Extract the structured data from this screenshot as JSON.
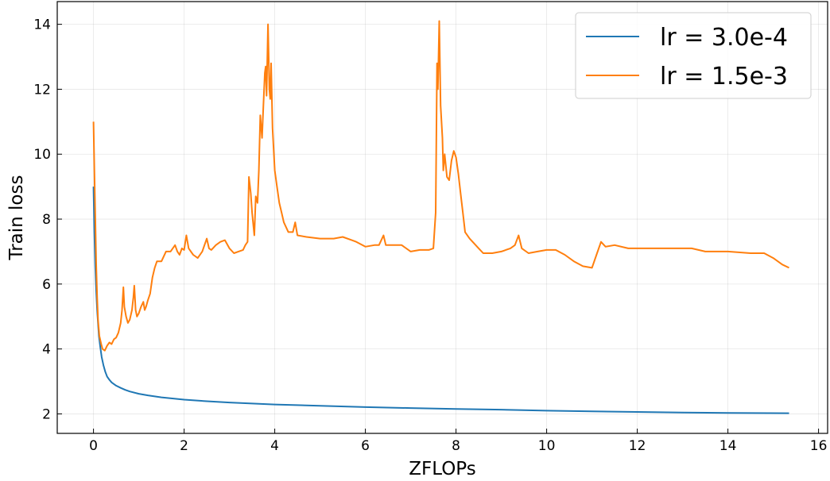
{
  "chart_data": {
    "type": "line",
    "title": "",
    "xlabel": "ZFLOPs",
    "ylabel": "Train loss",
    "xlim": [
      -0.8,
      16.2
    ],
    "ylim": [
      1.4,
      14.7
    ],
    "xticks": [
      0,
      2,
      4,
      6,
      8,
      10,
      12,
      14,
      16
    ],
    "yticks": [
      2,
      4,
      6,
      8,
      10,
      12,
      14
    ],
    "grid": true,
    "legend_position": "top-right",
    "series": [
      {
        "name": "lr = 3.0e-4",
        "color": "#1f77b4",
        "points": [
          [
            0.0,
            9.0
          ],
          [
            0.02,
            7.6
          ],
          [
            0.04,
            6.5
          ],
          [
            0.06,
            5.8
          ],
          [
            0.08,
            5.2
          ],
          [
            0.1,
            4.8
          ],
          [
            0.12,
            4.4
          ],
          [
            0.15,
            4.05
          ],
          [
            0.18,
            3.75
          ],
          [
            0.22,
            3.5
          ],
          [
            0.26,
            3.3
          ],
          [
            0.3,
            3.15
          ],
          [
            0.35,
            3.05
          ],
          [
            0.4,
            2.97
          ],
          [
            0.5,
            2.87
          ],
          [
            0.6,
            2.8
          ],
          [
            0.7,
            2.74
          ],
          [
            0.8,
            2.69
          ],
          [
            1.0,
            2.62
          ],
          [
            1.2,
            2.57
          ],
          [
            1.5,
            2.51
          ],
          [
            2.0,
            2.44
          ],
          [
            2.5,
            2.39
          ],
          [
            3.0,
            2.35
          ],
          [
            3.5,
            2.32
          ],
          [
            4.0,
            2.29
          ],
          [
            5.0,
            2.25
          ],
          [
            6.0,
            2.21
          ],
          [
            7.0,
            2.18
          ],
          [
            8.0,
            2.15
          ],
          [
            9.0,
            2.13
          ],
          [
            10.0,
            2.1
          ],
          [
            11.0,
            2.08
          ],
          [
            12.0,
            2.06
          ],
          [
            13.0,
            2.04
          ],
          [
            14.0,
            2.03
          ],
          [
            15.35,
            2.02
          ]
        ]
      },
      {
        "name": "lr = 1.5e-3",
        "color": "#ff7f0e",
        "points": [
          [
            0.0,
            11.0
          ],
          [
            0.02,
            9.5
          ],
          [
            0.04,
            8.0
          ],
          [
            0.06,
            6.6
          ],
          [
            0.08,
            5.6
          ],
          [
            0.1,
            4.9
          ],
          [
            0.13,
            4.4
          ],
          [
            0.17,
            4.15
          ],
          [
            0.2,
            4.0
          ],
          [
            0.25,
            3.95
          ],
          [
            0.3,
            4.1
          ],
          [
            0.35,
            4.2
          ],
          [
            0.4,
            4.15
          ],
          [
            0.45,
            4.3
          ],
          [
            0.5,
            4.35
          ],
          [
            0.55,
            4.5
          ],
          [
            0.6,
            4.8
          ],
          [
            0.63,
            5.2
          ],
          [
            0.66,
            5.9
          ],
          [
            0.68,
            5.3
          ],
          [
            0.72,
            5.0
          ],
          [
            0.76,
            4.8
          ],
          [
            0.8,
            4.9
          ],
          [
            0.85,
            5.2
          ],
          [
            0.88,
            5.6
          ],
          [
            0.9,
            5.95
          ],
          [
            0.93,
            5.2
          ],
          [
            0.96,
            5.0
          ],
          [
            1.0,
            5.1
          ],
          [
            1.05,
            5.3
          ],
          [
            1.1,
            5.45
          ],
          [
            1.13,
            5.2
          ],
          [
            1.16,
            5.3
          ],
          [
            1.2,
            5.5
          ],
          [
            1.25,
            5.7
          ],
          [
            1.3,
            6.2
          ],
          [
            1.35,
            6.5
          ],
          [
            1.4,
            6.7
          ],
          [
            1.5,
            6.7
          ],
          [
            1.6,
            7.0
          ],
          [
            1.7,
            7.0
          ],
          [
            1.8,
            7.2
          ],
          [
            1.85,
            7.0
          ],
          [
            1.9,
            6.9
          ],
          [
            1.95,
            7.1
          ],
          [
            2.0,
            7.05
          ],
          [
            2.05,
            7.5
          ],
          [
            2.1,
            7.1
          ],
          [
            2.2,
            6.9
          ],
          [
            2.3,
            6.8
          ],
          [
            2.4,
            7.0
          ],
          [
            2.5,
            7.4
          ],
          [
            2.55,
            7.1
          ],
          [
            2.6,
            7.05
          ],
          [
            2.7,
            7.2
          ],
          [
            2.8,
            7.3
          ],
          [
            2.9,
            7.35
          ],
          [
            3.0,
            7.1
          ],
          [
            3.1,
            6.95
          ],
          [
            3.2,
            7.0
          ],
          [
            3.3,
            7.05
          ],
          [
            3.35,
            7.2
          ],
          [
            3.4,
            7.3
          ],
          [
            3.43,
            9.3
          ],
          [
            3.47,
            8.8
          ],
          [
            3.5,
            8.2
          ],
          [
            3.55,
            7.5
          ],
          [
            3.58,
            8.7
          ],
          [
            3.62,
            8.5
          ],
          [
            3.65,
            9.5
          ],
          [
            3.68,
            11.2
          ],
          [
            3.72,
            10.5
          ],
          [
            3.75,
            11.5
          ],
          [
            3.78,
            12.5
          ],
          [
            3.8,
            12.7
          ],
          [
            3.82,
            11.8
          ],
          [
            3.85,
            14.0
          ],
          [
            3.88,
            12.0
          ],
          [
            3.9,
            11.7
          ],
          [
            3.92,
            12.8
          ],
          [
            3.95,
            10.8
          ],
          [
            4.0,
            9.5
          ],
          [
            4.05,
            9.0
          ],
          [
            4.1,
            8.5
          ],
          [
            4.15,
            8.2
          ],
          [
            4.2,
            7.9
          ],
          [
            4.3,
            7.6
          ],
          [
            4.4,
            7.6
          ],
          [
            4.45,
            7.9
          ],
          [
            4.5,
            7.5
          ],
          [
            4.7,
            7.45
          ],
          [
            5.0,
            7.4
          ],
          [
            5.3,
            7.4
          ],
          [
            5.5,
            7.45
          ],
          [
            5.7,
            7.35
          ],
          [
            5.8,
            7.3
          ],
          [
            6.0,
            7.15
          ],
          [
            6.2,
            7.2
          ],
          [
            6.3,
            7.2
          ],
          [
            6.4,
            7.5
          ],
          [
            6.45,
            7.2
          ],
          [
            6.6,
            7.2
          ],
          [
            6.8,
            7.2
          ],
          [
            7.0,
            7.0
          ],
          [
            7.2,
            7.05
          ],
          [
            7.4,
            7.05
          ],
          [
            7.5,
            7.1
          ],
          [
            7.55,
            8.2
          ],
          [
            7.58,
            12.8
          ],
          [
            7.6,
            12.0
          ],
          [
            7.63,
            14.1
          ],
          [
            7.66,
            11.5
          ],
          [
            7.7,
            10.5
          ],
          [
            7.72,
            9.5
          ],
          [
            7.75,
            10.0
          ],
          [
            7.8,
            9.3
          ],
          [
            7.85,
            9.2
          ],
          [
            7.9,
            9.8
          ],
          [
            7.95,
            10.1
          ],
          [
            8.0,
            9.9
          ],
          [
            8.05,
            9.4
          ],
          [
            8.1,
            8.8
          ],
          [
            8.15,
            8.2
          ],
          [
            8.2,
            7.6
          ],
          [
            8.3,
            7.4
          ],
          [
            8.5,
            7.1
          ],
          [
            8.6,
            6.95
          ],
          [
            8.8,
            6.95
          ],
          [
            9.0,
            7.0
          ],
          [
            9.2,
            7.1
          ],
          [
            9.3,
            7.2
          ],
          [
            9.38,
            7.5
          ],
          [
            9.45,
            7.1
          ],
          [
            9.6,
            6.95
          ],
          [
            9.8,
            7.0
          ],
          [
            10.0,
            7.05
          ],
          [
            10.2,
            7.05
          ],
          [
            10.4,
            6.9
          ],
          [
            10.6,
            6.7
          ],
          [
            10.8,
            6.55
          ],
          [
            11.0,
            6.5
          ],
          [
            11.1,
            6.9
          ],
          [
            11.2,
            7.3
          ],
          [
            11.3,
            7.15
          ],
          [
            11.5,
            7.2
          ],
          [
            11.8,
            7.1
          ],
          [
            12.0,
            7.1
          ],
          [
            12.5,
            7.1
          ],
          [
            13.0,
            7.1
          ],
          [
            13.2,
            7.1
          ],
          [
            13.5,
            7.0
          ],
          [
            14.0,
            7.0
          ],
          [
            14.5,
            6.95
          ],
          [
            14.8,
            6.95
          ],
          [
            15.0,
            6.8
          ],
          [
            15.2,
            6.6
          ],
          [
            15.35,
            6.5
          ]
        ]
      }
    ]
  }
}
